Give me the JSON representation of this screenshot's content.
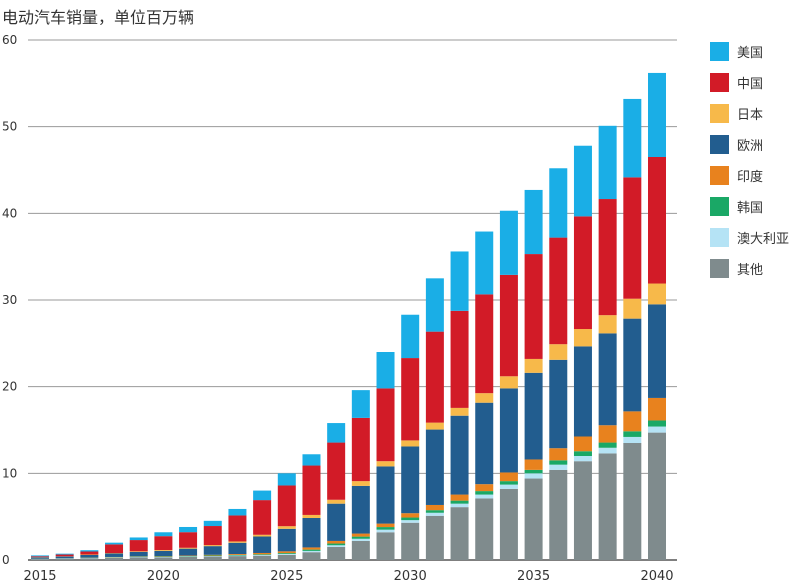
{
  "chart_data": {
    "type": "bar",
    "stacked": true,
    "title": "电动汽车销量，单位百万辆",
    "xlabel": "",
    "ylabel": "",
    "ylim": [
      0,
      60
    ],
    "yticks": [
      0,
      10,
      20,
      30,
      40,
      50,
      60
    ],
    "xtick_labels": [
      "2015",
      "2020",
      "2025",
      "2030",
      "2035",
      "2040"
    ],
    "grid": "horizontal",
    "legend_position": "right",
    "categories": [
      2015,
      2016,
      2017,
      2018,
      2019,
      2020,
      2021,
      2022,
      2023,
      2024,
      2025,
      2026,
      2027,
      2028,
      2029,
      2030,
      2031,
      2032,
      2033,
      2034,
      2035,
      2036,
      2037,
      2038,
      2039,
      2040
    ],
    "series": [
      {
        "name": "其他",
        "color": "#7f8b8d",
        "values": [
          0.1,
          0.15,
          0.2,
          0.25,
          0.3,
          0.3,
          0.35,
          0.4,
          0.45,
          0.5,
          0.6,
          0.9,
          1.5,
          2.2,
          3.2,
          4.3,
          5.1,
          6.1,
          7.1,
          8.2,
          9.4,
          10.4,
          11.4,
          12.3,
          13.5,
          14.7
        ]
      },
      {
        "name": "澳大利亚",
        "color": "#b5e3f5",
        "values": [
          0.02,
          0.02,
          0.03,
          0.03,
          0.04,
          0.05,
          0.05,
          0.06,
          0.07,
          0.08,
          0.1,
          0.15,
          0.2,
          0.25,
          0.3,
          0.3,
          0.35,
          0.4,
          0.45,
          0.5,
          0.6,
          0.6,
          0.6,
          0.65,
          0.7,
          0.7
        ]
      },
      {
        "name": "韩国",
        "color": "#1aa866",
        "values": [
          0.02,
          0.02,
          0.03,
          0.04,
          0.05,
          0.05,
          0.05,
          0.06,
          0.07,
          0.08,
          0.1,
          0.15,
          0.2,
          0.25,
          0.3,
          0.3,
          0.3,
          0.35,
          0.4,
          0.4,
          0.4,
          0.5,
          0.55,
          0.6,
          0.65,
          0.7
        ]
      },
      {
        "name": "印度",
        "color": "#e8821e",
        "values": [
          0.01,
          0.01,
          0.02,
          0.03,
          0.04,
          0.05,
          0.06,
          0.08,
          0.1,
          0.15,
          0.2,
          0.25,
          0.3,
          0.35,
          0.4,
          0.5,
          0.6,
          0.7,
          0.8,
          1.0,
          1.2,
          1.4,
          1.7,
          2.0,
          2.3,
          2.6
        ]
      },
      {
        "name": "欧洲",
        "color": "#225d8f",
        "values": [
          0.15,
          0.2,
          0.3,
          0.4,
          0.5,
          0.6,
          0.8,
          1.0,
          1.3,
          1.9,
          2.6,
          3.4,
          4.3,
          5.5,
          6.6,
          7.7,
          8.7,
          9.1,
          9.4,
          9.7,
          10.0,
          10.2,
          10.4,
          10.6,
          10.7,
          10.8
        ]
      },
      {
        "name": "日本",
        "color": "#f7b94a",
        "values": [
          0.03,
          0.03,
          0.05,
          0.05,
          0.07,
          0.1,
          0.1,
          0.12,
          0.15,
          0.2,
          0.3,
          0.35,
          0.45,
          0.55,
          0.6,
          0.7,
          0.8,
          0.9,
          1.1,
          1.4,
          1.6,
          1.8,
          2.0,
          2.1,
          2.3,
          2.4
        ]
      },
      {
        "name": "中国",
        "color": "#d21b27",
        "values": [
          0.1,
          0.2,
          0.35,
          1.0,
          1.3,
          1.6,
          1.8,
          2.2,
          3.0,
          4.0,
          4.7,
          5.7,
          6.6,
          7.3,
          8.4,
          9.5,
          10.5,
          11.2,
          11.4,
          11.7,
          12.1,
          12.3,
          13.0,
          13.4,
          14.0,
          14.6
        ]
      },
      {
        "name": "美国",
        "color": "#1aaee6",
        "values": [
          0.1,
          0.1,
          0.15,
          0.2,
          0.3,
          0.45,
          0.6,
          0.6,
          0.75,
          1.1,
          1.4,
          1.3,
          2.25,
          3.2,
          4.2,
          5.0,
          6.15,
          6.85,
          7.25,
          7.4,
          7.4,
          8.0,
          8.15,
          8.45,
          9.05,
          9.7
        ]
      }
    ],
    "legend_order": [
      "美国",
      "中国",
      "日本",
      "欧洲",
      "印度",
      "韩国",
      "澳大利亚",
      "其他"
    ]
  }
}
